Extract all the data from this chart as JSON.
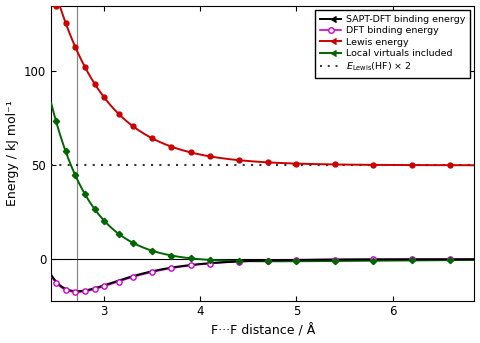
{
  "title": "",
  "xlabel": "F···F distance / Å",
  "ylabel": "Energy / kJ mol⁻¹",
  "xlim": [
    2.45,
    6.85
  ],
  "ylim": [
    -22,
    135
  ],
  "x_ticks": [
    3,
    4,
    5,
    6
  ],
  "y_ticks": [
    0,
    50,
    100
  ],
  "vline_x": 2.72,
  "dotted_y": 50,
  "colors": {
    "sapt": "#000000",
    "dft": "#cc00cc",
    "lewis": "#cc0000",
    "local": "#006600",
    "dotted": "#333333"
  },
  "legend_labels": [
    "SAPT-DFT binding energy",
    "DFT binding energy",
    "Lewis energy",
    "Local virtuals included"
  ]
}
